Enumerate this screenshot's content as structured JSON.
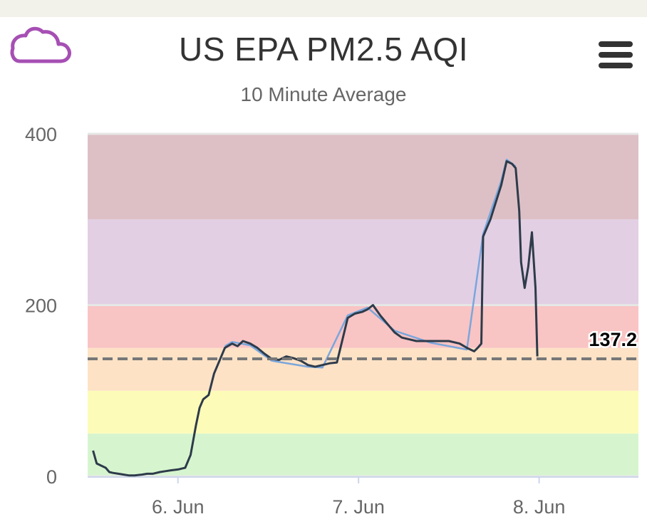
{
  "header": {
    "title": "US EPA PM2.5 AQI",
    "subtitle": "10 Minute Average",
    "cloud_icon_color": "#a64fb4"
  },
  "chart_data": {
    "type": "line",
    "title": "US EPA PM2.5 AQI",
    "subtitle": "10 Minute Average",
    "x_tick_labels": [
      "6. Jun",
      "7. Jun",
      "8. Jun"
    ],
    "x_range_days": [
      5.5,
      8.55
    ],
    "ylim": [
      0,
      400
    ],
    "y_tick_labels": [
      "0",
      "200",
      "400"
    ],
    "reference_line": {
      "value": 137.2,
      "label": "137.2",
      "style": "dashed",
      "color": "#777777"
    },
    "bands": [
      {
        "from": 0,
        "to": 50,
        "color": "#d6f5cf"
      },
      {
        "from": 50,
        "to": 100,
        "color": "#fdfbb8"
      },
      {
        "from": 100,
        "to": 150,
        "color": "#fde2c6"
      },
      {
        "from": 150,
        "to": 200,
        "color": "#f9c4c4"
      },
      {
        "from": 200,
        "to": 300,
        "color": "#e2cfe4"
      },
      {
        "from": 300,
        "to": 400,
        "color": "#ddc0c6"
      }
    ],
    "series": [
      {
        "color": "#2e3b4a",
        "points": [
          [
            5.53,
            30
          ],
          [
            5.55,
            15
          ],
          [
            5.58,
            12
          ],
          [
            5.6,
            10
          ],
          [
            5.62,
            5
          ],
          [
            5.64,
            4
          ],
          [
            5.67,
            3
          ],
          [
            5.7,
            2
          ],
          [
            5.73,
            1
          ],
          [
            5.76,
            1
          ],
          [
            5.8,
            2
          ],
          [
            5.83,
            3
          ],
          [
            5.86,
            3
          ],
          [
            5.9,
            5
          ],
          [
            5.93,
            6
          ],
          [
            5.96,
            7
          ],
          [
            6.0,
            8
          ],
          [
            6.04,
            10
          ],
          [
            6.07,
            25
          ],
          [
            6.1,
            60
          ],
          [
            6.12,
            80
          ],
          [
            6.14,
            90
          ],
          [
            6.17,
            95
          ],
          [
            6.2,
            120
          ],
          [
            6.23,
            135
          ],
          [
            6.26,
            150
          ],
          [
            6.3,
            155
          ],
          [
            6.33,
            152
          ],
          [
            6.36,
            158
          ],
          [
            6.4,
            155
          ],
          [
            6.44,
            150
          ],
          [
            6.48,
            143
          ],
          [
            6.52,
            137
          ],
          [
            6.56,
            136
          ],
          [
            6.6,
            140
          ],
          [
            6.64,
            138
          ],
          [
            6.68,
            135
          ],
          [
            6.72,
            130
          ],
          [
            6.76,
            128
          ],
          [
            6.8,
            130
          ],
          [
            6.84,
            132
          ],
          [
            6.88,
            133
          ],
          [
            6.9,
            150
          ],
          [
            6.94,
            185
          ],
          [
            6.98,
            190
          ],
          [
            7.02,
            192
          ],
          [
            7.05,
            195
          ],
          [
            7.08,
            200
          ],
          [
            7.12,
            188
          ],
          [
            7.16,
            178
          ],
          [
            7.2,
            168
          ],
          [
            7.24,
            162
          ],
          [
            7.28,
            160
          ],
          [
            7.32,
            158
          ],
          [
            7.4,
            158
          ],
          [
            7.5,
            158
          ],
          [
            7.56,
            155
          ],
          [
            7.6,
            150
          ],
          [
            7.64,
            146
          ],
          [
            7.66,
            150
          ],
          [
            7.68,
            155
          ],
          [
            7.69,
            280
          ],
          [
            7.71,
            290
          ],
          [
            7.73,
            300
          ],
          [
            7.76,
            320
          ],
          [
            7.79,
            340
          ],
          [
            7.82,
            368
          ],
          [
            7.85,
            365
          ],
          [
            7.87,
            360
          ],
          [
            7.89,
            310
          ],
          [
            7.9,
            250
          ],
          [
            7.92,
            220
          ],
          [
            7.94,
            245
          ],
          [
            7.96,
            285
          ],
          [
            7.98,
            220
          ],
          [
            7.99,
            140
          ]
        ]
      },
      {
        "color": "#7aa6dc",
        "points": [
          [
            6.26,
            152
          ],
          [
            6.3,
            157
          ],
          [
            6.4,
            153
          ],
          [
            6.52,
            135
          ],
          [
            6.72,
            128
          ],
          [
            6.8,
            127
          ],
          [
            6.94,
            188
          ],
          [
            7.05,
            197
          ],
          [
            7.2,
            170
          ],
          [
            7.4,
            156
          ],
          [
            7.6,
            148
          ],
          [
            7.69,
            283
          ],
          [
            7.79,
            345
          ],
          [
            7.82,
            370
          ],
          [
            7.87,
            362
          ]
        ]
      }
    ]
  }
}
